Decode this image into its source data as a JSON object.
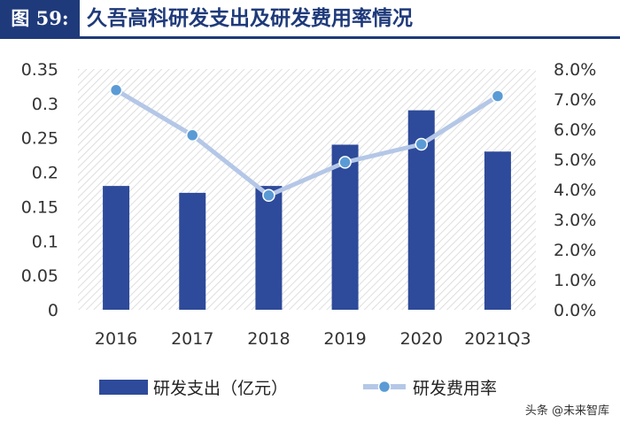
{
  "header": {
    "figure_label": "图 59:",
    "title": "久吾高科研发支出及研发费用率情况"
  },
  "watermark": "头条 @未来智库",
  "colors": {
    "bar": "#2e4a9a",
    "line": "#b4c7e7",
    "marker": "#5b9bd5",
    "header": "#1f3a7a"
  },
  "chart_data": {
    "type": "bar",
    "categories": [
      "2016",
      "2017",
      "2018",
      "2019",
      "2020",
      "2021Q3"
    ],
    "series": [
      {
        "name": "研发支出（亿元）",
        "type": "bar",
        "axis": "left",
        "values": [
          0.18,
          0.17,
          0.18,
          0.24,
          0.29,
          0.23
        ]
      },
      {
        "name": "研发费用率",
        "type": "line",
        "axis": "right",
        "values": [
          7.3,
          5.8,
          3.8,
          4.9,
          5.5,
          7.1
        ]
      }
    ],
    "y_left": {
      "lim": [
        0,
        0.35
      ],
      "ticks": [
        "0",
        "0.05",
        "0.1",
        "0.15",
        "0.2",
        "0.25",
        "0.3",
        "0.35"
      ]
    },
    "y_right": {
      "lim": [
        0,
        8
      ],
      "ticks": [
        "0.0%",
        "1.0%",
        "2.0%",
        "3.0%",
        "4.0%",
        "5.0%",
        "6.0%",
        "7.0%",
        "8.0%"
      ]
    },
    "grid": false,
    "background": "diagonal-hatch",
    "legend_position": "bottom"
  }
}
